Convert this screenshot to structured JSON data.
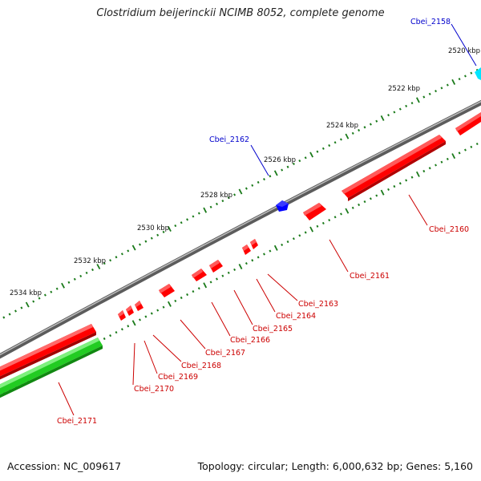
{
  "title": "Clostridium beijerinckii NCIMB 8052, complete genome",
  "footer": {
    "accession": "Accession: NC_009617",
    "summary": "Topology: circular; Length: 6,000,632 bp; Genes: 5,160"
  },
  "colors": {
    "backbone": "#7a7a7a",
    "tick": "#1a7a1a",
    "forward_cds": "#ff0000",
    "reverse_cds": "#ff0000",
    "highlight_blue": "#0000ff",
    "highlight_cyan": "#00e5ff",
    "rna_green": "#22cc22",
    "label_red": "#cc0000",
    "label_blue": "#0000cc"
  },
  "ruler": {
    "unit": "kbp",
    "labels": [
      "2520 kbp",
      "2522 kbp",
      "2524 kbp",
      "2526 kbp",
      "2528 kbp",
      "2530 kbp",
      "2532 kbp",
      "2534 kbp"
    ]
  },
  "genes": [
    {
      "label": "Cbei_2158",
      "color": "blue"
    },
    {
      "label": "Cbei_2160",
      "color": "red"
    },
    {
      "label": "Cbei_2161",
      "color": "red"
    },
    {
      "label": "Cbei_2162",
      "color": "blue"
    },
    {
      "label": "Cbei_2163",
      "color": "red"
    },
    {
      "label": "Cbei_2164",
      "color": "red"
    },
    {
      "label": "Cbei_2165",
      "color": "red"
    },
    {
      "label": "Cbei_2166",
      "color": "red"
    },
    {
      "label": "Cbei_2167",
      "color": "red"
    },
    {
      "label": "Cbei_2168",
      "color": "red"
    },
    {
      "label": "Cbei_2169",
      "color": "red"
    },
    {
      "label": "Cbei_2170",
      "color": "red"
    },
    {
      "label": "Cbei_2171",
      "color": "red"
    }
  ]
}
